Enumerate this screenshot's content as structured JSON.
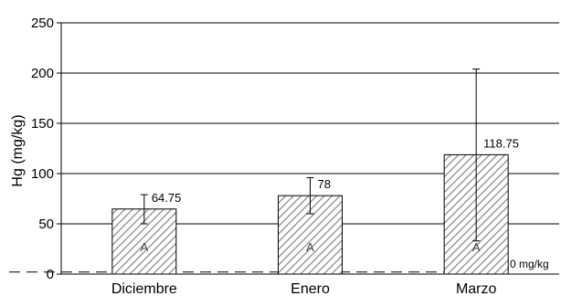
{
  "chart_data": {
    "type": "bar",
    "categories": [
      "Diciembre",
      "Enero",
      "Marzo"
    ],
    "values": [
      64.75,
      78,
      118.75
    ],
    "data_labels": [
      "64.75",
      "78",
      "118.75"
    ],
    "error_bars": [
      {
        "low": 50,
        "high": 79
      },
      {
        "low": 60,
        "high": 96
      },
      {
        "low": 33,
        "high": 204
      }
    ],
    "group_labels": [
      "A",
      "A",
      "A"
    ],
    "ylabel": "Hg (mg/kg)",
    "ylim": [
      0,
      250
    ],
    "yticks": [
      "0",
      "50",
      "100",
      "150",
      "200",
      "250"
    ],
    "grid": true,
    "reference_line": {
      "value": 2.0,
      "label": "2.0 mg/kg",
      "style": "dashed"
    },
    "bar_fill": "diagonal-hatch",
    "colors": {
      "bar_stroke": "#000000",
      "hatch": "#8a8a8a",
      "grid": "#000000"
    }
  }
}
